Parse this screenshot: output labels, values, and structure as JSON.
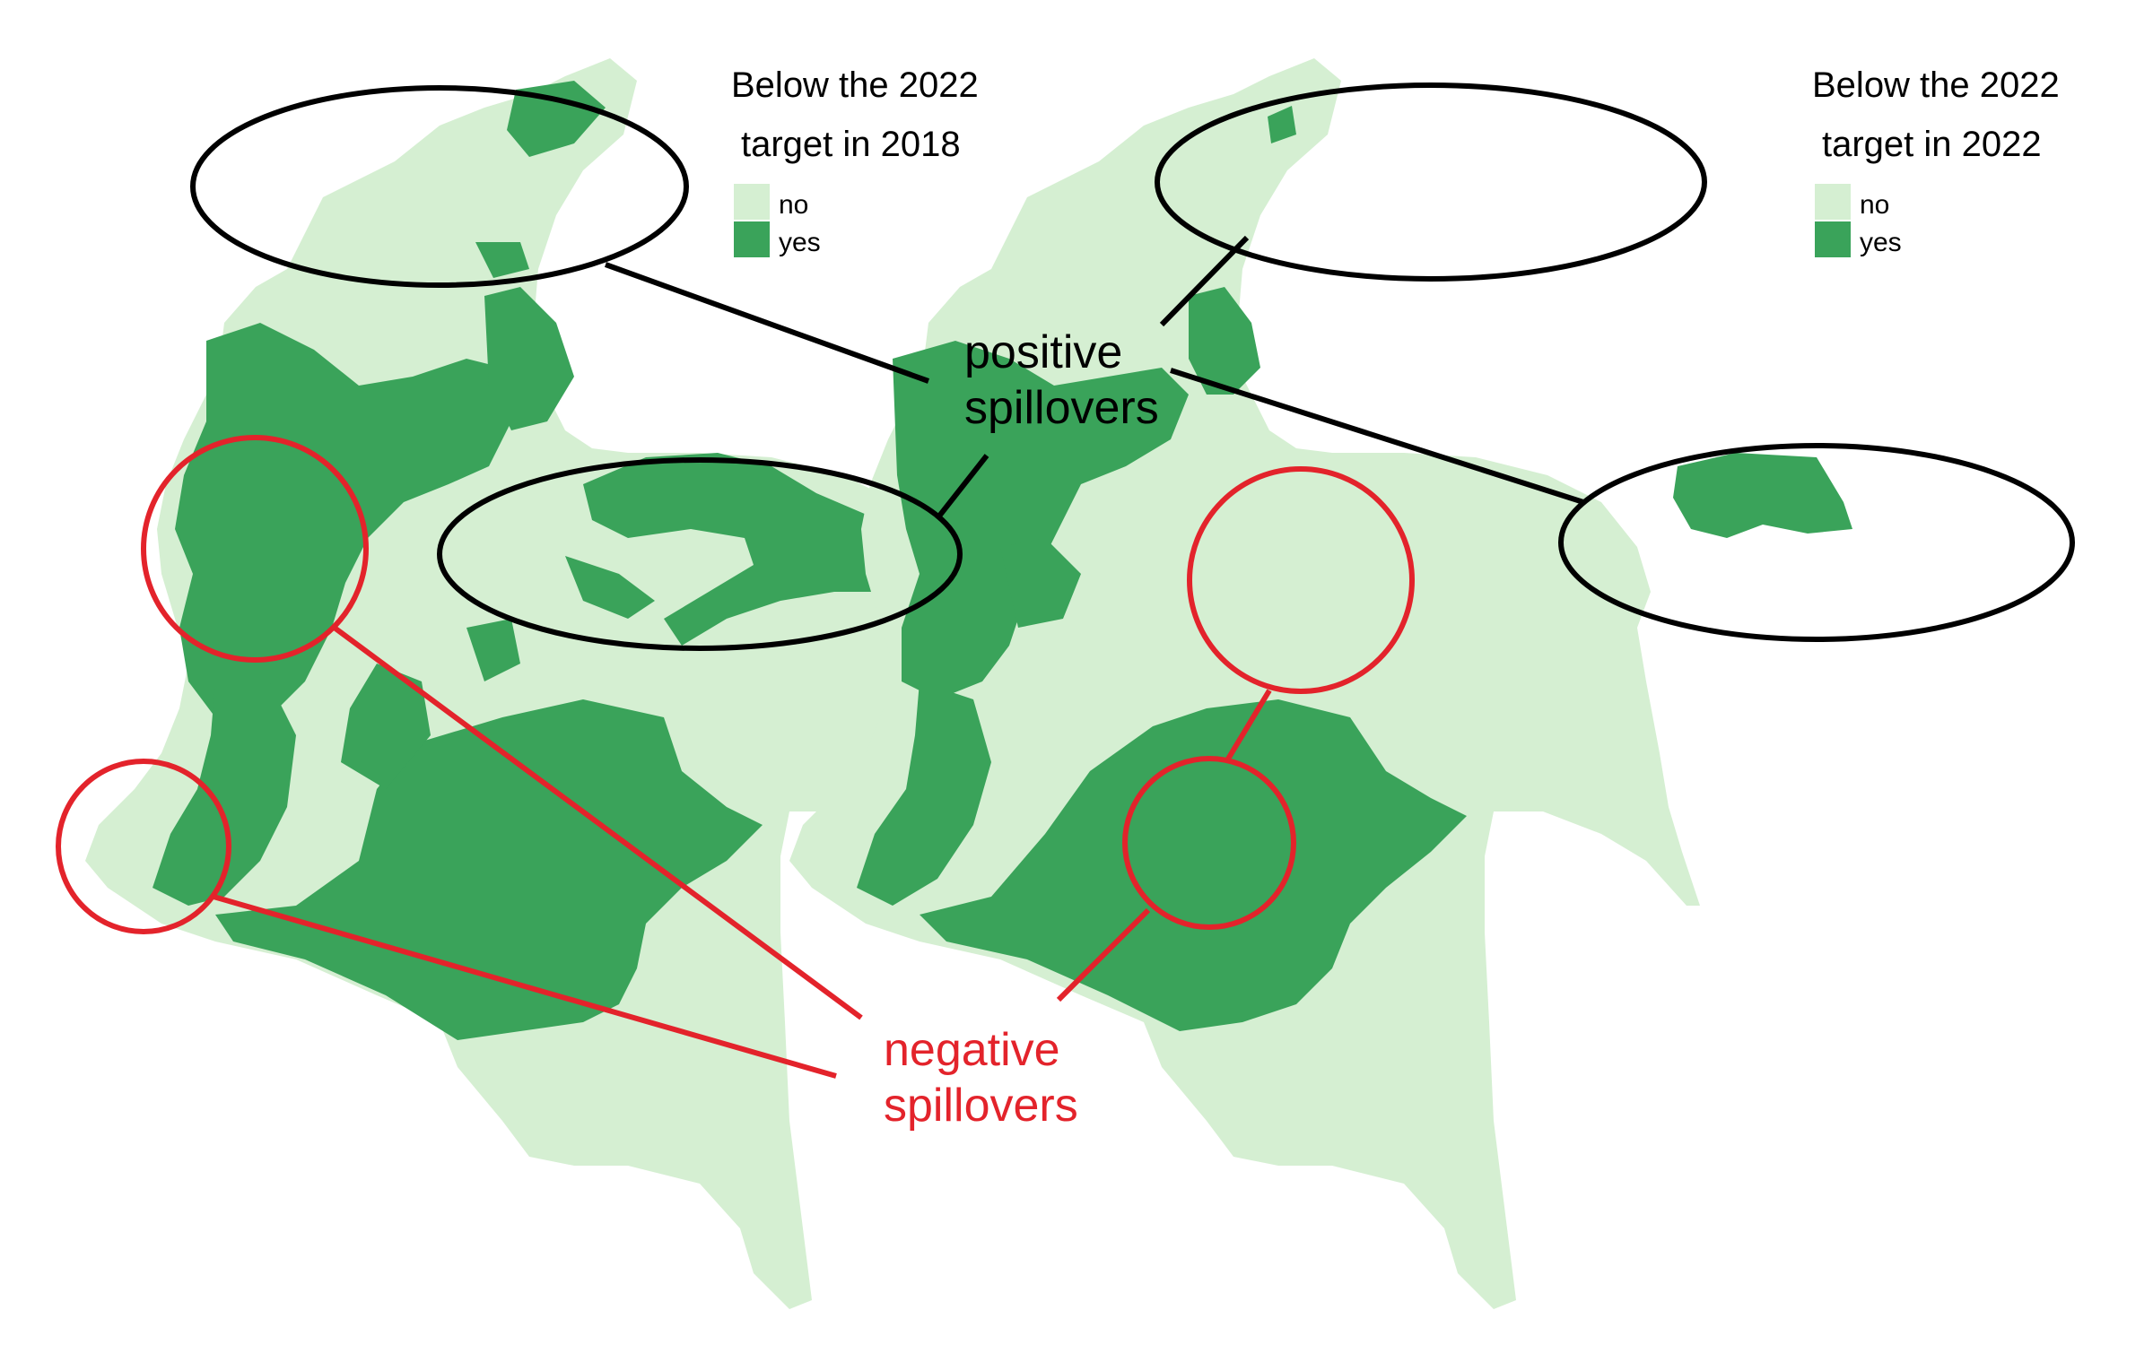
{
  "colors": {
    "no": "#d5efd2",
    "yes": "#3aa35a",
    "positive": "#000000",
    "negative": "#e3232b",
    "background": "#ffffff"
  },
  "left_map": {
    "legend": {
      "title_line1": "Below the 2022",
      "title_line2": "target in 2018",
      "items": [
        {
          "label": "no",
          "color_key": "no"
        },
        {
          "label": "yes",
          "color_key": "yes"
        }
      ]
    }
  },
  "right_map": {
    "legend": {
      "title_line1": "Below the 2022",
      "title_line2": "target in 2022",
      "items": [
        {
          "label": "no",
          "color_key": "no"
        },
        {
          "label": "yes",
          "color_key": "yes"
        }
      ]
    }
  },
  "annotations": {
    "positive": {
      "line1": "positive",
      "line2": "spillovers"
    },
    "negative": {
      "line1": "negative",
      "line2": "spillovers"
    }
  }
}
